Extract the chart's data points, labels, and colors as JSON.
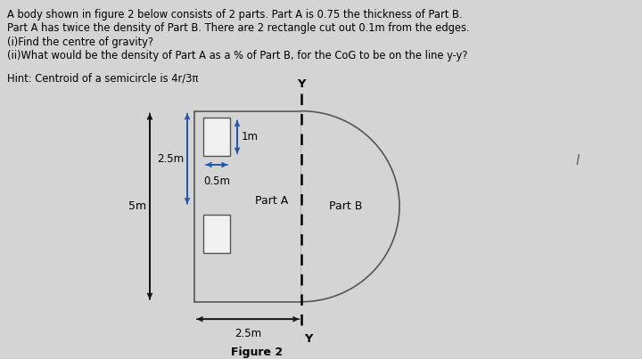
{
  "background_color": "#d4d4d4",
  "text_color": "#000000",
  "header_lines": [
    "A body shown in figure 2 below consists of 2 parts. Part A is 0.75 the thickness of Part B.",
    "Part A has twice the density of Part B. There are 2 rectangle cut out 0.1m from the edges.",
    "(i)Find the centre of gravity?",
    "(ii)What would be the density of Part A as a % of Part B, for the CoG to be on the line y-y?"
  ],
  "hint_line": "Hint: Centroid of a semicircle is 4r/3π",
  "figure_caption": "Figure 2",
  "rect_fill": "#d4d4d4",
  "cutout_fill": "#f0f0f0",
  "arrow_blue": "#2255aa",
  "arrow_black": "#111111",
  "label_5m": "5m",
  "label_25m_vert": "2.5m",
  "label_1m": "1m",
  "label_05m": "0.5m",
  "label_25m_horiz": "2.5m",
  "label_partA": "Part A",
  "label_partB": "Part B",
  "label_Y": "Y",
  "label_I": "I"
}
